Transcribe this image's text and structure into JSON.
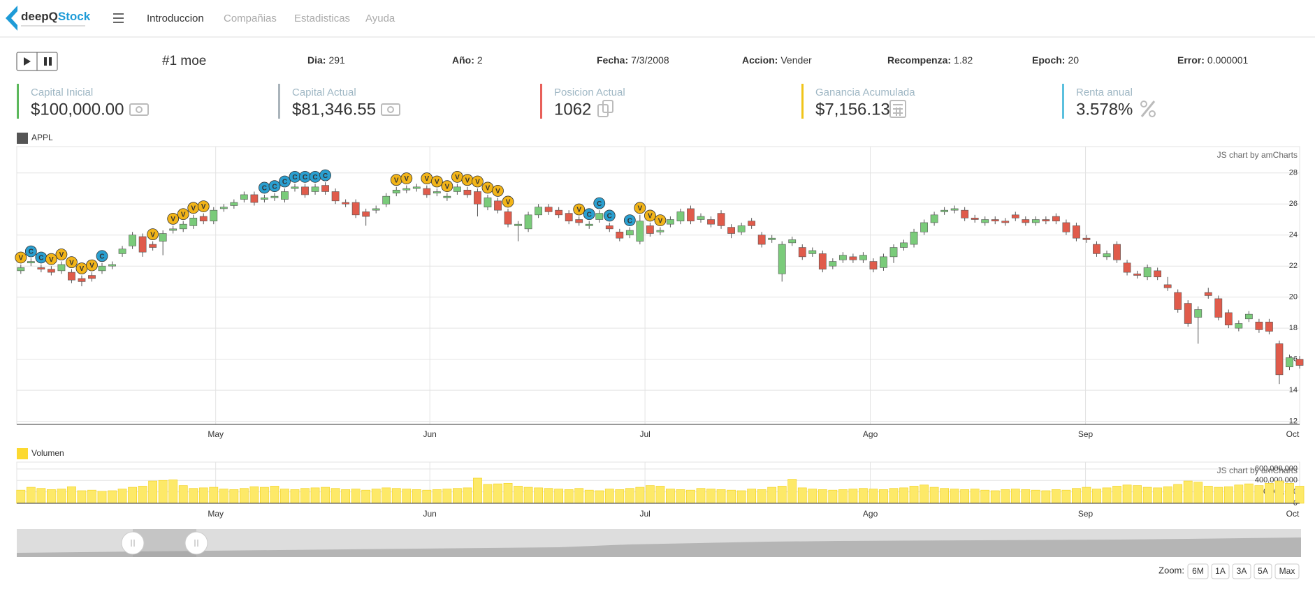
{
  "logo": {
    "part1": "deepQ",
    "part2": "Stock"
  },
  "nav": [
    "Introduccion",
    "Compañias",
    "Estadisticas",
    "Ayuda"
  ],
  "agent": "#1 moe",
  "status": [
    {
      "label": "Dia:",
      "value": "291"
    },
    {
      "label": "Año:",
      "value": "2"
    },
    {
      "label": "Fecha:",
      "value": "7/3/2008"
    },
    {
      "label": "Accion:",
      "value": "Vender"
    },
    {
      "label": "Recompenza:",
      "value": "1.82"
    },
    {
      "label": "Epoch:",
      "value": "20"
    },
    {
      "label": "Error:",
      "value": "0.000001"
    }
  ],
  "kpis": [
    {
      "label": "Capital Inicial",
      "value": "$100,000.00",
      "color": "#5cb85c"
    },
    {
      "label": "Capital Actual",
      "value": "$81,346.55",
      "color": "#aab4bb"
    },
    {
      "label": "Posicion Actual",
      "value": "1062",
      "color": "#e8605a"
    },
    {
      "label": "Ganancia Acumulada",
      "value": "$7,156.13",
      "color": "#f0c419"
    },
    {
      "label": "Renta anual",
      "value": "3.578%",
      "color": "#5bc0de"
    }
  ],
  "chart_data": [
    {
      "type": "candlestick",
      "legend": "APPL",
      "legend_color": "#555555",
      "credit": "JS chart by amCharts",
      "up_color": "#7acb7a",
      "down_color": "#e05b4b",
      "grid": true,
      "open": [
        21.7,
        22.2,
        21.9,
        21.8,
        21.7,
        21.6,
        21.2,
        21.4,
        21.7,
        22.0,
        22.8,
        23.3,
        23.9,
        23.4,
        23.6,
        24.3,
        24.4,
        24.6,
        25.2,
        24.9,
        25.7,
        25.9,
        26.3,
        26.6,
        26.3,
        26.4,
        26.3,
        27.0,
        27.1,
        26.8,
        27.2,
        26.8,
        26.1,
        26.1,
        25.5,
        25.6,
        26.0,
        26.7,
        26.9,
        27.0,
        27.0,
        26.7,
        26.4,
        26.8,
        26.9,
        26.8,
        25.8,
        26.2,
        25.5,
        24.6,
        24.4,
        25.3,
        25.8,
        25.6,
        25.4,
        25.0,
        24.6,
        25.0,
        24.6,
        24.2,
        24.0,
        23.6,
        24.6,
        24.2,
        24.7,
        24.9,
        25.7,
        25.0,
        25.0,
        25.4,
        24.5,
        24.2,
        24.9,
        24.0,
        23.7,
        21.5,
        23.5,
        23.2,
        22.8,
        22.8,
        22.0,
        22.4,
        22.6,
        22.4,
        22.3,
        21.9,
        22.6,
        23.2,
        23.4,
        24.2,
        24.8,
        25.5,
        25.6,
        25.6,
        25.1,
        24.8,
        25.0,
        24.9,
        25.3,
        25.0,
        24.8,
        25.0,
        25.2,
        24.8,
        24.6,
        23.8,
        23.4,
        22.6,
        23.4,
        22.2,
        21.5,
        21.3,
        21.7,
        20.8,
        20.3,
        19.6,
        18.7,
        20.3,
        19.9,
        19.0,
        18.0,
        18.6,
        18.4,
        18.4,
        17.0,
        15.5,
        16.0
      ],
      "high": [
        22.1,
        22.5,
        22.1,
        22.0,
        22.3,
        21.8,
        21.4,
        21.6,
        22.2,
        22.3,
        23.3,
        24.2,
        24.1,
        23.6,
        24.3,
        24.6,
        24.9,
        25.3,
        25.4,
        25.8,
        26.0,
        26.3,
        26.8,
        26.8,
        26.6,
        26.7,
        27.0,
        27.3,
        27.3,
        27.3,
        27.4,
        27.0,
        26.3,
        26.3,
        25.7,
        25.9,
        26.7,
        27.1,
        27.2,
        27.3,
        27.2,
        27.0,
        26.7,
        27.3,
        27.1,
        27.0,
        26.6,
        26.4,
        25.7,
        24.9,
        25.5,
        26.0,
        26.0,
        25.8,
        25.6,
        25.2,
        24.9,
        25.6,
        24.8,
        24.4,
        24.5,
        25.3,
        24.8,
        24.5,
        25.2,
        25.7,
        25.9,
        25.4,
        25.2,
        25.6,
        24.7,
        24.8,
        25.1,
        24.2,
        24.0,
        23.6,
        23.9,
        23.4,
        23.2,
        23.0,
        22.5,
        22.9,
        22.8,
        22.9,
        22.5,
        22.8,
        23.4,
        23.7,
        24.4,
        25.0,
        25.5,
        25.8,
        25.9,
        25.8,
        25.3,
        25.2,
        25.2,
        25.1,
        25.5,
        25.2,
        25.2,
        25.2,
        25.4,
        25.0,
        24.8,
        24.0,
        23.6,
        23.0,
        23.6,
        22.4,
        21.7,
        22.1,
        21.9,
        21.3,
        20.5,
        19.8,
        19.4,
        20.6,
        20.1,
        19.2,
        18.5,
        19.1,
        18.6,
        18.6,
        17.2,
        16.3,
        16.2
      ],
      "low": [
        21.5,
        22.0,
        21.6,
        21.4,
        21.5,
        20.9,
        20.7,
        21.0,
        21.5,
        21.8,
        22.6,
        23.1,
        22.6,
        23.0,
        22.7,
        24.1,
        24.2,
        24.4,
        24.7,
        24.7,
        25.5,
        25.7,
        26.1,
        25.9,
        26.1,
        26.2,
        26.1,
        26.8,
        26.4,
        26.6,
        26.6,
        26.0,
        25.8,
        25.1,
        24.6,
        25.4,
        25.8,
        26.5,
        26.7,
        26.8,
        26.4,
        26.5,
        26.2,
        26.6,
        26.4,
        25.2,
        25.6,
        25.4,
        24.5,
        23.6,
        24.2,
        25.1,
        25.3,
        25.1,
        24.7,
        24.6,
        24.4,
        24.8,
        24.2,
        23.6,
        23.8,
        23.4,
        23.9,
        24.0,
        24.5,
        24.7,
        24.7,
        24.8,
        24.5,
        24.4,
        23.8,
        24.0,
        24.4,
        23.2,
        23.5,
        21.0,
        23.3,
        22.4,
        22.6,
        21.6,
        21.8,
        22.2,
        22.2,
        22.2,
        21.6,
        21.7,
        22.2,
        23.0,
        23.2,
        24.0,
        24.6,
        25.3,
        25.4,
        24.9,
        24.8,
        24.6,
        24.7,
        24.6,
        24.9,
        24.6,
        24.6,
        24.7,
        24.7,
        24.0,
        23.6,
        23.5,
        22.6,
        22.4,
        22.2,
        21.4,
        21.2,
        21.1,
        21.1,
        20.4,
        19.0,
        18.1,
        17.0,
        19.9,
        18.5,
        18.0,
        17.8,
        18.4,
        17.7,
        17.6,
        14.4,
        15.3,
        15.4
      ],
      "close": [
        21.9,
        22.3,
        21.8,
        21.6,
        22.1,
        21.1,
        21.0,
        21.2,
        22.0,
        22.1,
        23.1,
        24.0,
        22.9,
        23.2,
        24.1,
        24.4,
        24.7,
        25.1,
        24.9,
        25.6,
        25.8,
        26.1,
        26.6,
        26.1,
        26.4,
        26.5,
        26.8,
        27.1,
        26.6,
        27.1,
        26.8,
        26.2,
        26.0,
        25.3,
        25.2,
        25.7,
        26.5,
        26.9,
        27.0,
        27.1,
        26.6,
        26.8,
        26.5,
        27.1,
        26.6,
        26.0,
        26.4,
        25.6,
        24.7,
        24.7,
        25.3,
        25.8,
        25.5,
        25.3,
        24.9,
        24.8,
        24.7,
        25.4,
        24.4,
        23.8,
        24.3,
        24.9,
        24.1,
        24.3,
        25.0,
        25.5,
        24.9,
        25.2,
        24.7,
        24.6,
        24.1,
        24.6,
        24.6,
        23.4,
        23.8,
        23.4,
        23.7,
        22.6,
        23.0,
        21.8,
        22.3,
        22.7,
        22.4,
        22.7,
        21.8,
        22.6,
        23.2,
        23.5,
        24.2,
        24.8,
        25.3,
        25.6,
        25.7,
        25.1,
        25.0,
        25.0,
        24.9,
        24.8,
        25.1,
        24.8,
        25.0,
        24.9,
        24.9,
        24.2,
        23.8,
        23.7,
        22.8,
        22.8,
        22.4,
        21.6,
        21.4,
        21.9,
        21.3,
        20.6,
        19.2,
        18.3,
        19.2,
        20.1,
        18.7,
        18.2,
        18.3,
        18.9,
        17.9,
        17.8,
        15.0,
        16.1,
        15.6
      ],
      "signals": [
        {
          "label": "V",
          "color": "#f2b418"
        },
        {
          "label": "C",
          "color": "#2a9fd0"
        },
        {
          "label": "C",
          "color": "#2a9fd0"
        },
        {
          "label": "V",
          "color": "#f2b418"
        },
        {
          "label": "V",
          "color": "#f2b418"
        },
        {
          "label": "V",
          "color": "#f2b418"
        },
        {
          "label": "V",
          "color": "#f2b418"
        },
        {
          "label": "V",
          "color": "#f2b418"
        },
        {
          "label": "C",
          "color": "#2a9fd0"
        },
        null,
        null,
        null,
        null,
        {
          "label": "V",
          "color": "#f2b418"
        },
        null,
        {
          "label": "V",
          "color": "#f2b418"
        },
        {
          "label": "V",
          "color": "#f2b418"
        },
        {
          "label": "V",
          "color": "#f2b418"
        },
        {
          "label": "V",
          "color": "#f2b418"
        },
        null,
        null,
        null,
        null,
        null,
        {
          "label": "C",
          "color": "#2a9fd0"
        },
        {
          "label": "C",
          "color": "#2a9fd0"
        },
        {
          "label": "C",
          "color": "#2a9fd0"
        },
        {
          "label": "C",
          "color": "#2a9fd0"
        },
        {
          "label": "C",
          "color": "#2a9fd0"
        },
        {
          "label": "C",
          "color": "#2a9fd0"
        },
        {
          "label": "C",
          "color": "#2a9fd0"
        },
        null,
        null,
        null,
        null,
        null,
        null,
        {
          "label": "V",
          "color": "#f2b418"
        },
        {
          "label": "V",
          "color": "#f2b418"
        },
        null,
        {
          "label": "V",
          "color": "#f2b418"
        },
        {
          "label": "V",
          "color": "#f2b418"
        },
        {
          "label": "V",
          "color": "#f2b418"
        },
        {
          "label": "V",
          "color": "#f2b418"
        },
        {
          "label": "V",
          "color": "#f2b418"
        },
        {
          "label": "V",
          "color": "#f2b418"
        },
        {
          "label": "V",
          "color": "#f2b418"
        },
        {
          "label": "V",
          "color": "#f2b418"
        },
        {
          "label": "V",
          "color": "#f2b418"
        },
        null,
        null,
        null,
        null,
        null,
        null,
        {
          "label": "V",
          "color": "#f2b418"
        },
        {
          "label": "C",
          "color": "#2a9fd0"
        },
        {
          "label": "C",
          "color": "#2a9fd0"
        },
        {
          "label": "C",
          "color": "#2a9fd0"
        },
        null,
        {
          "label": "C",
          "color": "#2a9fd0"
        },
        {
          "label": "V",
          "color": "#f2b418"
        },
        {
          "label": "V",
          "color": "#f2b418"
        },
        {
          "label": "V",
          "color": "#f2b418"
        },
        null,
        null,
        null,
        null,
        null,
        null,
        null,
        null,
        null,
        null,
        null,
        null,
        null,
        null,
        null,
        null,
        null,
        null,
        null,
        null,
        null,
        null,
        null,
        null,
        null,
        null,
        null,
        null,
        null,
        null,
        null,
        null,
        null,
        null,
        null,
        null,
        null,
        null,
        null,
        null,
        null,
        null,
        null,
        null,
        null,
        null,
        null,
        null,
        null,
        null,
        null,
        null,
        null,
        null,
        null,
        null,
        null,
        null,
        null,
        null,
        null,
        null,
        null,
        null,
        null,
        null,
        null
      ],
      "xlim": [
        -0.4,
        126
      ],
      "xticks": [
        {
          "value": 19.2,
          "label": "May"
        },
        {
          "value": 40.3,
          "label": "Jun"
        },
        {
          "value": 61.5,
          "label": "Jul"
        },
        {
          "value": 83.7,
          "label": "Ago"
        },
        {
          "value": 104.9,
          "label": "Sep"
        },
        {
          "value": 126,
          "label": "Oct"
        }
      ],
      "ylim": [
        11.8,
        29.7
      ],
      "yticks": [
        12,
        14,
        16,
        18,
        20,
        22,
        24,
        26,
        28
      ]
    },
    {
      "type": "column",
      "legend": "Volumen",
      "legend_color": "#fcd930",
      "color": "#fde968",
      "stroke": "#f2cf1a",
      "credit": "JS chart by amCharts",
      "grid": true,
      "values": [
        230000000,
        280000000,
        260000000,
        240000000,
        250000000,
        290000000,
        220000000,
        230000000,
        210000000,
        220000000,
        250000000,
        280000000,
        300000000,
        390000000,
        400000000,
        410000000,
        310000000,
        260000000,
        270000000,
        280000000,
        250000000,
        240000000,
        260000000,
        290000000,
        280000000,
        300000000,
        250000000,
        240000000,
        260000000,
        270000000,
        280000000,
        260000000,
        240000000,
        250000000,
        230000000,
        250000000,
        270000000,
        260000000,
        250000000,
        240000000,
        230000000,
        240000000,
        250000000,
        260000000,
        270000000,
        440000000,
        330000000,
        340000000,
        350000000,
        300000000,
        280000000,
        270000000,
        260000000,
        250000000,
        240000000,
        260000000,
        230000000,
        220000000,
        250000000,
        240000000,
        260000000,
        280000000,
        310000000,
        300000000,
        250000000,
        240000000,
        230000000,
        260000000,
        250000000,
        240000000,
        230000000,
        220000000,
        250000000,
        240000000,
        280000000,
        300000000,
        420000000,
        270000000,
        250000000,
        240000000,
        230000000,
        240000000,
        250000000,
        260000000,
        250000000,
        240000000,
        260000000,
        270000000,
        300000000,
        320000000,
        280000000,
        260000000,
        250000000,
        240000000,
        250000000,
        230000000,
        220000000,
        240000000,
        250000000,
        240000000,
        230000000,
        220000000,
        240000000,
        230000000,
        260000000,
        280000000,
        250000000,
        270000000,
        300000000,
        320000000,
        310000000,
        280000000,
        270000000,
        290000000,
        330000000,
        390000000,
        370000000,
        300000000,
        280000000,
        290000000,
        320000000,
        340000000,
        310000000,
        350000000,
        390000000,
        350000000,
        300000000
      ],
      "xlim": [
        -0.4,
        126
      ],
      "xticks": [
        {
          "value": 19.2,
          "label": "May"
        },
        {
          "value": 40.3,
          "label": "Jun"
        },
        {
          "value": 61.5,
          "label": "Jul"
        },
        {
          "value": 83.7,
          "label": "Ago"
        },
        {
          "value": 104.9,
          "label": "Sep"
        },
        {
          "value": 126,
          "label": "Oct"
        }
      ],
      "ylim": [
        0,
        720000000
      ],
      "yticks": [
        0,
        {
          "value": 200000000,
          "label": "200,000,000"
        },
        {
          "value": 400000000,
          "label": "400,000,000"
        },
        {
          "value": 600000000,
          "label": "600,000,000"
        }
      ]
    }
  ],
  "zoom": {
    "label": "Zoom:",
    "buttons": [
      "6M",
      "1A",
      "3A",
      "5A",
      "Max"
    ]
  }
}
